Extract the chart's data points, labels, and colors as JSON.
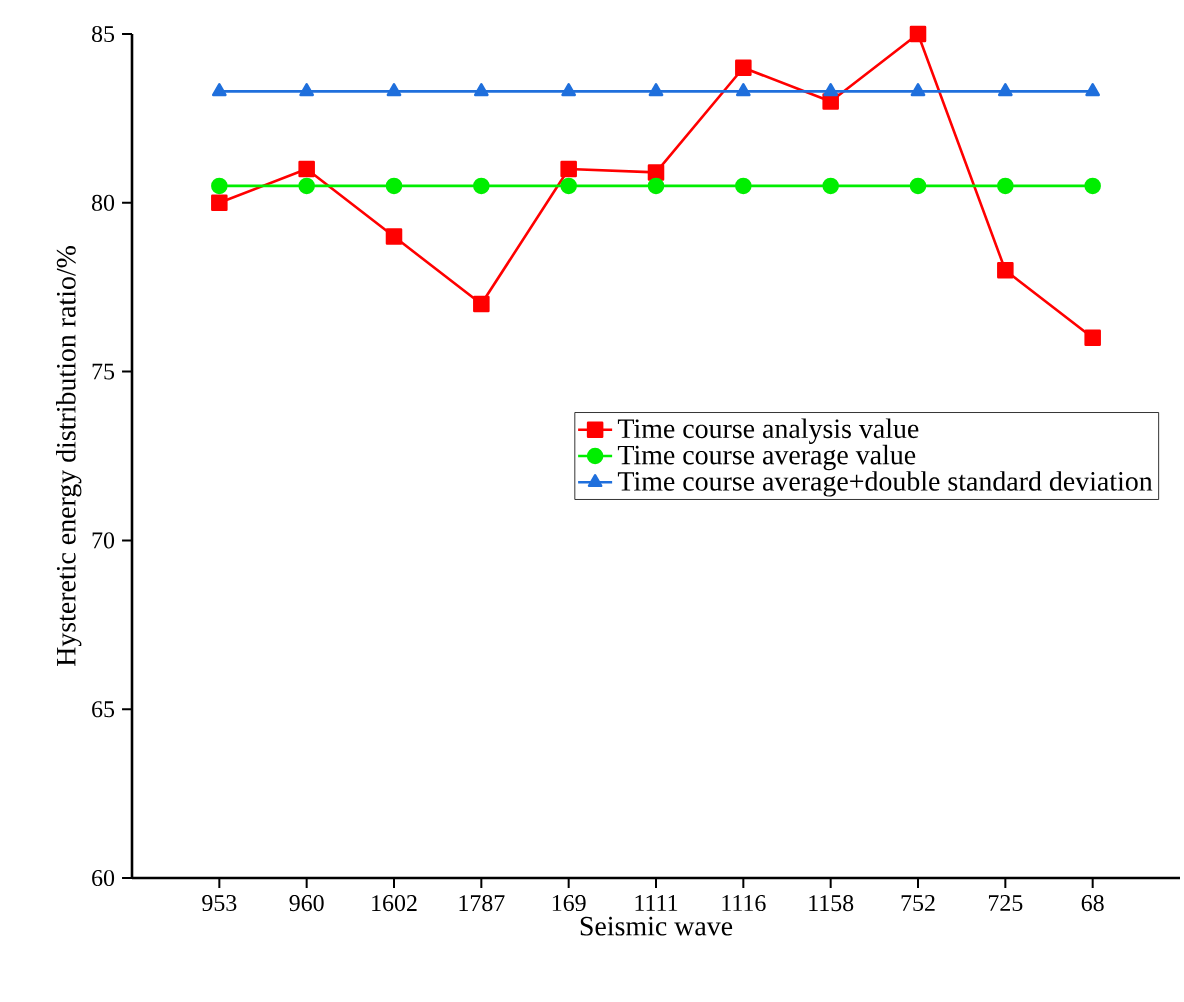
{
  "chart_data": {
    "type": "line",
    "xlabel": "Seismic wave",
    "ylabel": "Hysteretic energy distribution ratio/%",
    "categories": [
      "953",
      "960",
      "1602",
      "1787",
      "169",
      "1111",
      "1116",
      "1158",
      "752",
      "725",
      "68"
    ],
    "series": [
      {
        "name": "Time course analysis value",
        "color": "#ff0000",
        "marker": "square",
        "values": [
          80,
          81,
          79,
          77,
          81,
          80.9,
          84,
          83,
          85,
          78,
          76
        ]
      },
      {
        "name": "Time course average value",
        "color": "#00ee00",
        "marker": "circle",
        "values": [
          80.5,
          80.5,
          80.5,
          80.5,
          80.5,
          80.5,
          80.5,
          80.5,
          80.5,
          80.5,
          80.5
        ]
      },
      {
        "name": "Time course average+double standard deviation",
        "color": "#1f6fdc",
        "marker": "triangle",
        "values": [
          83.3,
          83.3,
          83.3,
          83.3,
          83.3,
          83.3,
          83.3,
          83.3,
          83.3,
          83.3,
          83.3
        ]
      }
    ],
    "ylim": [
      60,
      85
    ],
    "yticks": [
      60,
      65,
      70,
      75,
      80,
      85
    ],
    "legend": "right",
    "line_style": "solid",
    "grid": false
  }
}
